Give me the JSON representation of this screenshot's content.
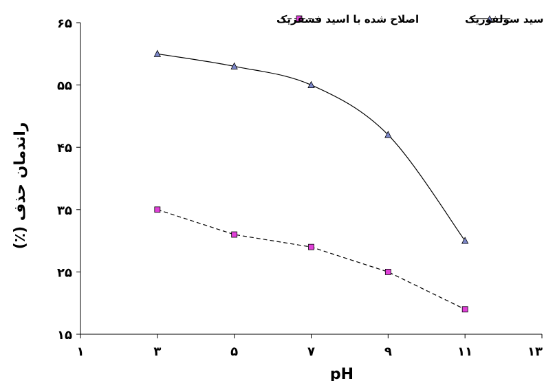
{
  "chart_data": {
    "type": "line",
    "xlabel": "pH",
    "ylabel": "راندمان حذف (٪)",
    "xlim": [
      1,
      13
    ],
    "ylim": [
      15,
      65
    ],
    "x_ticks": [
      1,
      3,
      5,
      7,
      9,
      11,
      13
    ],
    "x_tick_labels": [
      "۱",
      "۳",
      "۵",
      "۷",
      "۹",
      "۱۱",
      "۱۳"
    ],
    "y_ticks": [
      15,
      25,
      35,
      45,
      55,
      65
    ],
    "y_tick_labels": [
      "۱۵",
      "۲۵",
      "۳۵",
      "۴۵",
      "۵۵",
      "۶۵"
    ],
    "grid": false,
    "legend_position": "top",
    "series": [
      {
        "name": "اصلاح شده با اسید سولفوریک",
        "x": [
          3,
          5,
          7,
          9,
          11
        ],
        "y": [
          60,
          58,
          55,
          47,
          30
        ],
        "marker": "triangle",
        "line_style": "solid",
        "line_color": "#000000",
        "marker_color": "#7b86c8"
      },
      {
        "name": "اصلاح شده با اسید فسفریک",
        "x": [
          3,
          5,
          7,
          9,
          11
        ],
        "y": [
          35,
          31,
          29,
          25,
          19
        ],
        "marker": "square",
        "line_style": "dashed",
        "line_color": "#000000",
        "marker_color": "#e040d8"
      }
    ]
  }
}
